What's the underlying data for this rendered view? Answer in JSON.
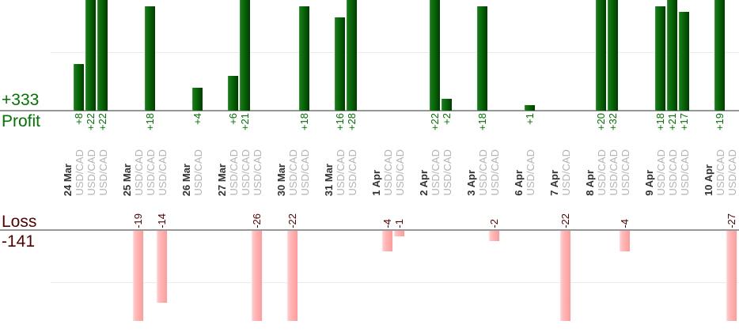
{
  "profit_section": {
    "total_label": "+333",
    "axis_label": "Profit",
    "color": "#007400"
  },
  "loss_section": {
    "total_label": "-141",
    "axis_label": "Loss",
    "color": "#550000"
  },
  "chart_data": {
    "type": "bar",
    "title": "",
    "profit_total": 333,
    "loss_total": -141,
    "gridline_interval": 10,
    "profit_axis_visible_max": 19,
    "loss_axis_visible_min": -17.5,
    "profit_bar_color_hint": "#0a6a0a",
    "loss_bar_color_hint": "#ffb0b0",
    "groups": [
      {
        "date": "24 Mar",
        "trades": [
          {
            "instrument": "USD/CAD",
            "value": 8,
            "label": "+8"
          },
          {
            "instrument": "USD/CAD",
            "value": 22,
            "label": "+22"
          },
          {
            "instrument": "USD/CAD",
            "value": 22,
            "label": "+22"
          }
        ]
      },
      {
        "date": "25 Mar",
        "trades": [
          {
            "instrument": "USD/CAD",
            "value": -19,
            "label": "-19"
          },
          {
            "instrument": "USD/CAD",
            "value": 18,
            "label": "+18"
          },
          {
            "instrument": "USD/CAD",
            "value": -14,
            "label": "-14"
          }
        ]
      },
      {
        "date": "26 Mar",
        "trades": [
          {
            "instrument": "USD/CAD",
            "value": 4,
            "label": "+4"
          }
        ]
      },
      {
        "date": "27 Mar",
        "trades": [
          {
            "instrument": "USD/CAD",
            "value": 6,
            "label": "+6"
          },
          {
            "instrument": "USD/CAD",
            "value": 21,
            "label": "+21"
          },
          {
            "instrument": "USD/CAD",
            "value": -26,
            "label": "-26"
          }
        ]
      },
      {
        "date": "30 Mar",
        "trades": [
          {
            "instrument": "USD/CAD",
            "value": -22,
            "label": "-22"
          },
          {
            "instrument": "USD/CAD",
            "value": 18,
            "label": "+18"
          }
        ]
      },
      {
        "date": "31 Mar",
        "trades": [
          {
            "instrument": "USD/CAD",
            "value": 16,
            "label": "+16"
          },
          {
            "instrument": "USD/CAD",
            "value": 28,
            "label": "+28"
          }
        ]
      },
      {
        "date": "1 Apr",
        "trades": [
          {
            "instrument": "USD/CAD",
            "value": -4,
            "label": "-4"
          },
          {
            "instrument": "USD/CAD",
            "value": -1,
            "label": "-1"
          }
        ]
      },
      {
        "date": "2 Apr",
        "trades": [
          {
            "instrument": "USD/CAD",
            "value": 22,
            "label": "+22"
          },
          {
            "instrument": "USD/CAD",
            "value": 2,
            "label": "+2"
          }
        ]
      },
      {
        "date": "3 Apr",
        "trades": [
          {
            "instrument": "USD/CAD",
            "value": 18,
            "label": "+18"
          },
          {
            "instrument": "USD/CAD",
            "value": -2,
            "label": "-2"
          }
        ]
      },
      {
        "date": "6 Apr",
        "trades": [
          {
            "instrument": "USD/CAD",
            "value": 1,
            "label": "+1"
          }
        ]
      },
      {
        "date": "7 Apr",
        "trades": [
          {
            "instrument": "USD/CAD",
            "value": -22,
            "label": "-22"
          }
        ]
      },
      {
        "date": "8 Apr",
        "trades": [
          {
            "instrument": "USD/CAD",
            "value": 20,
            "label": "+20"
          },
          {
            "instrument": "USD/CAD",
            "value": 32,
            "label": "+32"
          },
          {
            "instrument": "USD/CAD",
            "value": -4,
            "label": "-4"
          }
        ]
      },
      {
        "date": "9 Apr",
        "trades": [
          {
            "instrument": "USD/CAD",
            "value": 18,
            "label": "+18"
          },
          {
            "instrument": "USD/CAD",
            "value": 21,
            "label": "+21"
          },
          {
            "instrument": "USD/CAD",
            "value": 17,
            "label": "+17"
          }
        ]
      },
      {
        "date": "10 Apr",
        "trades": [
          {
            "instrument": "USD/CAD",
            "value": 19,
            "label": "+19"
          },
          {
            "instrument": "USD/CAD",
            "value": -27,
            "label": "-27"
          }
        ]
      }
    ]
  }
}
